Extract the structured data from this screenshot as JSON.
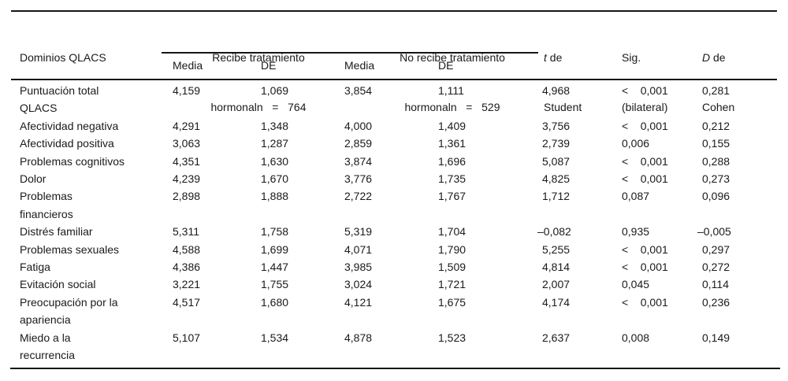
{
  "table": {
    "header": {
      "domains": "Dominios QLACS",
      "group1_line1": "Recibe tratamiento",
      "group1_line2": "hormonaln   =   764",
      "group2_line1": "No recibe tratamiento",
      "group2_line2": "hormonaln   =   529",
      "t_italic": "t",
      "t_rest": " de",
      "t_line2": "Student",
      "sig_line1": "Sig.",
      "sig_line2": "(bilateral)",
      "d_italic": "D",
      "d_rest": " de",
      "d_line2": "Cohen",
      "media1": "Media",
      "de1": "DE",
      "media2": "Media",
      "de2": "DE"
    },
    "column_keys": [
      "media1",
      "de1",
      "media2",
      "de2",
      "t",
      "sig",
      "d"
    ],
    "rows": [
      {
        "label_lines": [
          "Puntuación total",
          "QLACS"
        ],
        "cells": [
          "4,159",
          "1,069",
          "3,854",
          "1,111",
          "4,968",
          "<    0,001",
          "0,281"
        ]
      },
      {
        "label_lines": [
          "Afectividad negativa"
        ],
        "cells": [
          "4,291",
          "1,348",
          "4,000",
          "1,409",
          "3,756",
          "<    0,001",
          "0,212"
        ]
      },
      {
        "label_lines": [
          "Afectividad positiva"
        ],
        "cells": [
          "3,063",
          "1,287",
          "2,859",
          "1,361",
          "2,739",
          "0,006",
          "0,155"
        ]
      },
      {
        "label_lines": [
          "Problemas cognitivos"
        ],
        "cells": [
          "4,351",
          "1,630",
          "3,874",
          "1,696",
          "5,087",
          "<    0,001",
          "0,288"
        ]
      },
      {
        "label_lines": [
          "Dolor"
        ],
        "cells": [
          "4,239",
          "1,670",
          "3,776",
          "1,735",
          "4,825",
          "<    0,001",
          "0,273"
        ]
      },
      {
        "label_lines": [
          "Problemas",
          "financieros"
        ],
        "cells": [
          "2,898",
          "1,888",
          "2,722",
          "1,767",
          "1,712",
          "0,087",
          "0,096"
        ]
      },
      {
        "label_lines": [
          "Distrés familiar"
        ],
        "cells": [
          "5,311",
          "1,758",
          "5,319",
          "1,704",
          "–0,082",
          "0,935",
          "–0,005"
        ]
      },
      {
        "label_lines": [
          "Problemas sexuales"
        ],
        "cells": [
          "4,588",
          "1,699",
          "4,071",
          "1,790",
          "5,255",
          "<    0,001",
          "0,297"
        ]
      },
      {
        "label_lines": [
          "Fatiga"
        ],
        "cells": [
          "4,386",
          "1,447",
          "3,985",
          "1,509",
          "4,814",
          "<    0,001",
          "0,272"
        ]
      },
      {
        "label_lines": [
          "Evitación social"
        ],
        "cells": [
          "3,221",
          "1,755",
          "3,024",
          "1,721",
          "2,007",
          "0,045",
          "0,114"
        ]
      },
      {
        "label_lines": [
          "Preocupación por la",
          "apariencia"
        ],
        "cells": [
          "4,517",
          "1,680",
          "4,121",
          "1,675",
          "4,174",
          "<    0,001",
          "0,236"
        ]
      },
      {
        "label_lines": [
          "Miedo a la",
          "recurrencia"
        ],
        "cells": [
          "5,107",
          "1,534",
          "4,878",
          "1,523",
          "2,637",
          "0,008",
          "0,149"
        ]
      }
    ]
  }
}
